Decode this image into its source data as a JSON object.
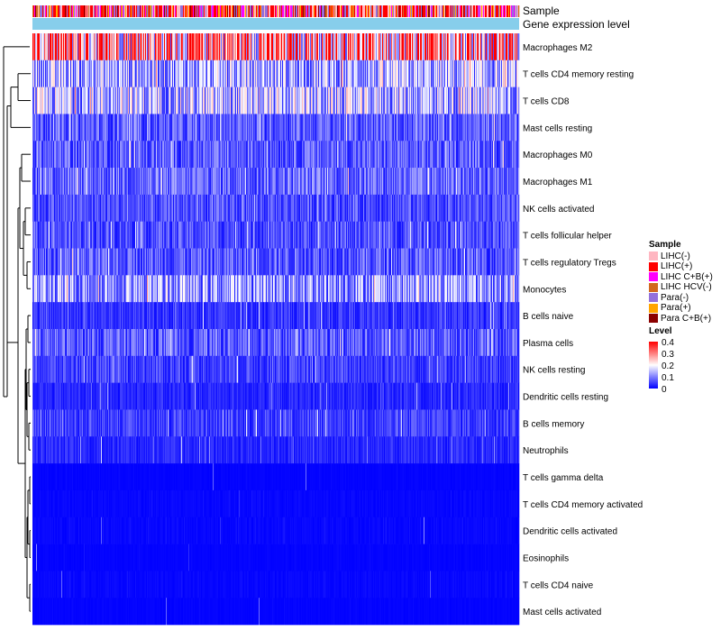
{
  "chart_data": {
    "type": "heatmap",
    "title": "",
    "annotations": [
      "Sample",
      "Gene expression level"
    ],
    "rows": [
      "Macrophages M2",
      "T cells CD4 memory resting",
      "T cells CD8",
      "Mast cells resting",
      "Macrophages M0",
      "Macrophages M1",
      "NK cells activated",
      "T cells follicular helper",
      "T cells regulatory  Tregs",
      "Monocytes",
      "B cells naive",
      "Plasma cells",
      "NK cells resting",
      "Dendritic cells resting",
      "B cells memory",
      "Neutrophils",
      "T cells gamma delta",
      "T cells CD4 memory activated",
      "Dendritic cells activated",
      "Eosinophils",
      "T cells CD4 naive",
      "Mast cells activated"
    ],
    "approx_mean_level": [
      0.28,
      0.13,
      0.14,
      0.07,
      0.07,
      0.08,
      0.06,
      0.06,
      0.07,
      0.12,
      0.04,
      0.07,
      0.05,
      0.03,
      0.05,
      0.03,
      0.005,
      0.01,
      0.01,
      0.005,
      0.01,
      0.005
    ],
    "n_samples": 540,
    "sample_legend": {
      "title": "Sample",
      "items": [
        {
          "label": "LIHC(-)",
          "color": "#FFB6C1"
        },
        {
          "label": "LIHC(+)",
          "color": "#FF0000"
        },
        {
          "label": "LIHC C+B(+)",
          "color": "#FF00FF"
        },
        {
          "label": "LIHC HCV(-)",
          "color": "#D2691E"
        },
        {
          "label": "Para(-)",
          "color": "#9370DB"
        },
        {
          "label": "Para(+)",
          "color": "#FFA500"
        },
        {
          "label": "Para C+B(+)",
          "color": "#8B0000"
        }
      ]
    },
    "level_legend": {
      "title": "Level",
      "ticks": [
        "0.4",
        "0.3",
        "0.2",
        "0.1",
        "0"
      ],
      "range": [
        0,
        0.4
      ],
      "colors": {
        "low": "#0000FF",
        "mid": "#FFFFFF",
        "high": "#FF0000"
      }
    },
    "gene_expression_color": "#87CEEB"
  }
}
